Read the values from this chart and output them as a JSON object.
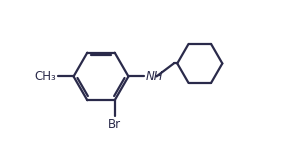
{
  "line_color": "#2a2a4a",
  "background_color": "#ffffff",
  "line_width": 1.6,
  "font_size_labels": 8.5,
  "nh_label": "NH",
  "br_label": "Br",
  "figsize": [
    3.06,
    1.5
  ],
  "dpi": 100
}
